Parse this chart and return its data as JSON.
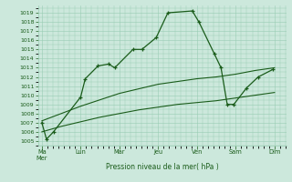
{
  "xlabel": "Pression niveau de la mer( hPa )",
  "background_color": "#cce8dc",
  "grid_color": "#99ccb3",
  "line_color": "#1a5c1a",
  "ylim": [
    1004.5,
    1019.8
  ],
  "ytick_values": [
    1005,
    1006,
    1007,
    1008,
    1009,
    1010,
    1011,
    1012,
    1013,
    1014,
    1015,
    1016,
    1017,
    1018,
    1019
  ],
  "x_tick_positions": [
    0.0,
    1.0,
    2.0,
    3.0,
    4.0,
    5.0,
    6.0
  ],
  "x_tick_labels": [
    "Ma\nMer",
    "Lun",
    "Mar",
    "Jeu",
    "Ven",
    "Sam",
    "Dim"
  ],
  "xlim": [
    -0.1,
    6.3
  ],
  "main_x": [
    0.0,
    0.12,
    0.3,
    1.0,
    1.12,
    1.45,
    1.72,
    1.88,
    2.35,
    2.58,
    2.95,
    3.25,
    3.88,
    4.05,
    4.45,
    4.62,
    4.78,
    4.95,
    5.28,
    5.58,
    5.95
  ],
  "main_y": [
    1007.0,
    1005.2,
    1006.0,
    1009.8,
    1011.8,
    1013.2,
    1013.4,
    1013.0,
    1015.0,
    1015.0,
    1016.3,
    1019.0,
    1019.2,
    1018.0,
    1014.5,
    1013.0,
    1009.0,
    1009.0,
    1010.8,
    1012.0,
    1012.8
  ],
  "upper_x": [
    0.0,
    0.5,
    1.0,
    1.5,
    2.0,
    2.5,
    3.0,
    3.5,
    4.0,
    4.5,
    5.0,
    5.5,
    6.0
  ],
  "upper_y": [
    1007.2,
    1008.0,
    1008.8,
    1009.5,
    1010.2,
    1010.7,
    1011.2,
    1011.5,
    1011.8,
    1012.0,
    1012.3,
    1012.7,
    1013.0
  ],
  "lower_x": [
    0.0,
    0.5,
    1.0,
    1.5,
    2.0,
    2.5,
    3.0,
    3.5,
    4.0,
    4.5,
    5.0,
    5.5,
    6.0
  ],
  "lower_y": [
    1006.0,
    1006.6,
    1007.1,
    1007.6,
    1008.0,
    1008.4,
    1008.7,
    1009.0,
    1009.2,
    1009.4,
    1009.7,
    1010.0,
    1010.3
  ]
}
